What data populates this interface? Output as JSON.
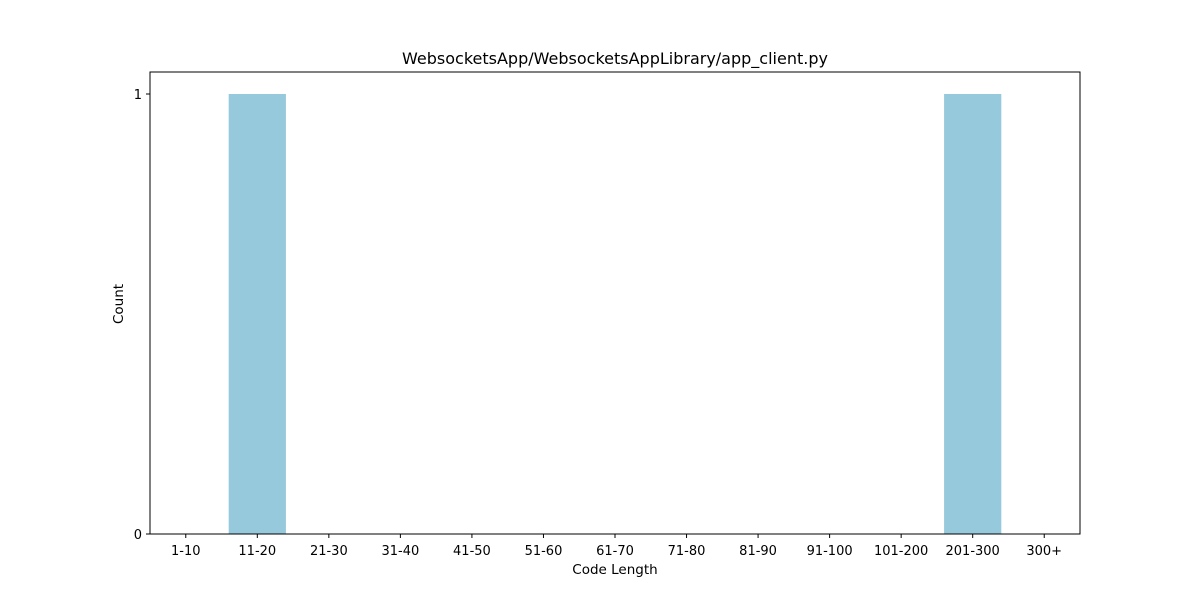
{
  "chart_data": {
    "type": "bar",
    "title": "WebsocketsApp/WebsocketsAppLibrary/app_client.py",
    "xlabel": "Code Length",
    "ylabel": "Count",
    "categories": [
      "1-10",
      "11-20",
      "21-30",
      "31-40",
      "41-50",
      "51-60",
      "61-70",
      "71-80",
      "81-90",
      "91-100",
      "101-200",
      "201-300",
      "300+"
    ],
    "values": [
      0,
      1,
      0,
      0,
      0,
      0,
      0,
      0,
      0,
      0,
      0,
      1,
      0
    ],
    "yticks": [
      0,
      1
    ],
    "ylim": [
      0,
      1.05
    ],
    "grid": false,
    "bar_color": "#96c9dc"
  }
}
